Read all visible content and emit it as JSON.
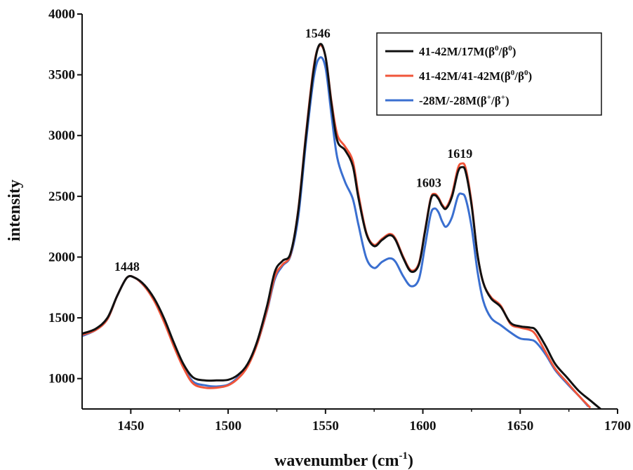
{
  "chart_data": {
    "type": "line",
    "title": "",
    "xlabel": "wavenumber (cm",
    "xlabel_sup": "-1",
    "xlabel_close": ")",
    "ylabel": "intensity",
    "xlim": [
      1425,
      1700
    ],
    "ylim": [
      750,
      4000
    ],
    "xticks": [
      1450,
      1500,
      1550,
      1600,
      1650,
      1700
    ],
    "yticks": [
      1000,
      1500,
      2000,
      2500,
      3000,
      3500,
      4000
    ],
    "legend_position": "top-right",
    "annotations": [
      {
        "text": "1448",
        "x": 1448,
        "y": 1830
      },
      {
        "text": "1546",
        "x": 1546,
        "y": 3750
      },
      {
        "text": "1603",
        "x": 1603,
        "y": 2520
      },
      {
        "text": "1619",
        "x": 1619,
        "y": 2760
      }
    ],
    "series": [
      {
        "name": "41-42M/17M(β0/β0)",
        "name_parts": [
          "41-42M/17M(β",
          "0",
          "/β",
          "0",
          ")"
        ],
        "color": "#111111",
        "points": [
          [
            1425,
            1370
          ],
          [
            1432,
            1410
          ],
          [
            1438,
            1500
          ],
          [
            1443,
            1680
          ],
          [
            1448,
            1830
          ],
          [
            1452,
            1830
          ],
          [
            1457,
            1770
          ],
          [
            1462,
            1660
          ],
          [
            1467,
            1500
          ],
          [
            1472,
            1300
          ],
          [
            1477,
            1120
          ],
          [
            1482,
            1010
          ],
          [
            1488,
            985
          ],
          [
            1494,
            985
          ],
          [
            1500,
            990
          ],
          [
            1505,
            1030
          ],
          [
            1510,
            1120
          ],
          [
            1515,
            1310
          ],
          [
            1520,
            1600
          ],
          [
            1524,
            1880
          ],
          [
            1528,
            1970
          ],
          [
            1532,
            2030
          ],
          [
            1536,
            2380
          ],
          [
            1540,
            3000
          ],
          [
            1544,
            3550
          ],
          [
            1547,
            3750
          ],
          [
            1550,
            3650
          ],
          [
            1553,
            3270
          ],
          [
            1556,
            2960
          ],
          [
            1560,
            2880
          ],
          [
            1564,
            2750
          ],
          [
            1567,
            2480
          ],
          [
            1571,
            2190
          ],
          [
            1575,
            2090
          ],
          [
            1579,
            2140
          ],
          [
            1583,
            2180
          ],
          [
            1586,
            2140
          ],
          [
            1590,
            1990
          ],
          [
            1594,
            1880
          ],
          [
            1598,
            1940
          ],
          [
            1601,
            2200
          ],
          [
            1604,
            2470
          ],
          [
            1606,
            2510
          ],
          [
            1608,
            2480
          ],
          [
            1610,
            2420
          ],
          [
            1612,
            2400
          ],
          [
            1615,
            2500
          ],
          [
            1618,
            2700
          ],
          [
            1620,
            2740
          ],
          [
            1622,
            2700
          ],
          [
            1625,
            2430
          ],
          [
            1628,
            2030
          ],
          [
            1631,
            1790
          ],
          [
            1635,
            1660
          ],
          [
            1640,
            1590
          ],
          [
            1645,
            1460
          ],
          [
            1650,
            1430
          ],
          [
            1655,
            1420
          ],
          [
            1658,
            1400
          ],
          [
            1663,
            1270
          ],
          [
            1668,
            1120
          ],
          [
            1674,
            1010
          ],
          [
            1680,
            900
          ],
          [
            1686,
            820
          ],
          [
            1692,
            740
          ]
        ]
      },
      {
        "name": "41-42M/41-42M(β0/β0)",
        "name_parts": [
          "41-42M/41-42M(β",
          "0",
          "/β",
          "0",
          ")"
        ],
        "color": "#f0553a",
        "points": [
          [
            1425,
            1360
          ],
          [
            1432,
            1400
          ],
          [
            1438,
            1490
          ],
          [
            1443,
            1680
          ],
          [
            1448,
            1830
          ],
          [
            1452,
            1830
          ],
          [
            1457,
            1760
          ],
          [
            1462,
            1640
          ],
          [
            1467,
            1470
          ],
          [
            1472,
            1270
          ],
          [
            1477,
            1090
          ],
          [
            1482,
            960
          ],
          [
            1488,
            925
          ],
          [
            1494,
            925
          ],
          [
            1500,
            945
          ],
          [
            1505,
            1000
          ],
          [
            1510,
            1100
          ],
          [
            1515,
            1290
          ],
          [
            1520,
            1570
          ],
          [
            1524,
            1840
          ],
          [
            1528,
            1940
          ],
          [
            1532,
            2020
          ],
          [
            1536,
            2390
          ],
          [
            1540,
            3020
          ],
          [
            1544,
            3570
          ],
          [
            1547,
            3740
          ],
          [
            1550,
            3650
          ],
          [
            1553,
            3290
          ],
          [
            1556,
            3010
          ],
          [
            1560,
            2910
          ],
          [
            1564,
            2790
          ],
          [
            1567,
            2510
          ],
          [
            1571,
            2200
          ],
          [
            1575,
            2100
          ],
          [
            1579,
            2150
          ],
          [
            1583,
            2190
          ],
          [
            1586,
            2150
          ],
          [
            1590,
            2000
          ],
          [
            1594,
            1890
          ],
          [
            1598,
            1950
          ],
          [
            1601,
            2210
          ],
          [
            1604,
            2480
          ],
          [
            1606,
            2520
          ],
          [
            1608,
            2490
          ],
          [
            1610,
            2430
          ],
          [
            1612,
            2410
          ],
          [
            1615,
            2520
          ],
          [
            1618,
            2730
          ],
          [
            1620,
            2770
          ],
          [
            1622,
            2730
          ],
          [
            1625,
            2450
          ],
          [
            1628,
            2030
          ],
          [
            1631,
            1790
          ],
          [
            1635,
            1670
          ],
          [
            1640,
            1600
          ],
          [
            1645,
            1450
          ],
          [
            1650,
            1420
          ],
          [
            1655,
            1400
          ],
          [
            1658,
            1360
          ],
          [
            1663,
            1220
          ],
          [
            1668,
            1080
          ],
          [
            1674,
            970
          ],
          [
            1680,
            860
          ],
          [
            1686,
            760
          ]
        ]
      },
      {
        "name": "-28M/-28M(β+/β+)",
        "name_parts": [
          "-28M/-28M(β",
          "+",
          "/β",
          "+",
          ")"
        ],
        "color": "#3a6fd0",
        "points": [
          [
            1425,
            1350
          ],
          [
            1432,
            1400
          ],
          [
            1438,
            1490
          ],
          [
            1443,
            1680
          ],
          [
            1448,
            1830
          ],
          [
            1452,
            1830
          ],
          [
            1457,
            1760
          ],
          [
            1462,
            1650
          ],
          [
            1467,
            1490
          ],
          [
            1472,
            1290
          ],
          [
            1477,
            1100
          ],
          [
            1482,
            975
          ],
          [
            1488,
            945
          ],
          [
            1494,
            935
          ],
          [
            1500,
            950
          ],
          [
            1505,
            1010
          ],
          [
            1510,
            1110
          ],
          [
            1515,
            1290
          ],
          [
            1520,
            1560
          ],
          [
            1524,
            1820
          ],
          [
            1528,
            1930
          ],
          [
            1532,
            2010
          ],
          [
            1536,
            2330
          ],
          [
            1540,
            2950
          ],
          [
            1544,
            3480
          ],
          [
            1547,
            3640
          ],
          [
            1550,
            3560
          ],
          [
            1553,
            3180
          ],
          [
            1556,
            2820
          ],
          [
            1560,
            2620
          ],
          [
            1564,
            2480
          ],
          [
            1567,
            2260
          ],
          [
            1571,
            1990
          ],
          [
            1575,
            1910
          ],
          [
            1579,
            1960
          ],
          [
            1583,
            1990
          ],
          [
            1586,
            1960
          ],
          [
            1590,
            1840
          ],
          [
            1594,
            1760
          ],
          [
            1598,
            1820
          ],
          [
            1601,
            2080
          ],
          [
            1604,
            2350
          ],
          [
            1606,
            2400
          ],
          [
            1608,
            2370
          ],
          [
            1610,
            2290
          ],
          [
            1612,
            2250
          ],
          [
            1615,
            2330
          ],
          [
            1618,
            2500
          ],
          [
            1620,
            2520
          ],
          [
            1622,
            2480
          ],
          [
            1625,
            2250
          ],
          [
            1628,
            1890
          ],
          [
            1631,
            1640
          ],
          [
            1635,
            1500
          ],
          [
            1640,
            1440
          ],
          [
            1645,
            1380
          ],
          [
            1650,
            1330
          ],
          [
            1655,
            1320
          ],
          [
            1658,
            1300
          ],
          [
            1663,
            1200
          ],
          [
            1668,
            1070
          ],
          [
            1674,
            960
          ],
          [
            1680,
            860
          ],
          [
            1685,
            770
          ]
        ]
      }
    ]
  }
}
